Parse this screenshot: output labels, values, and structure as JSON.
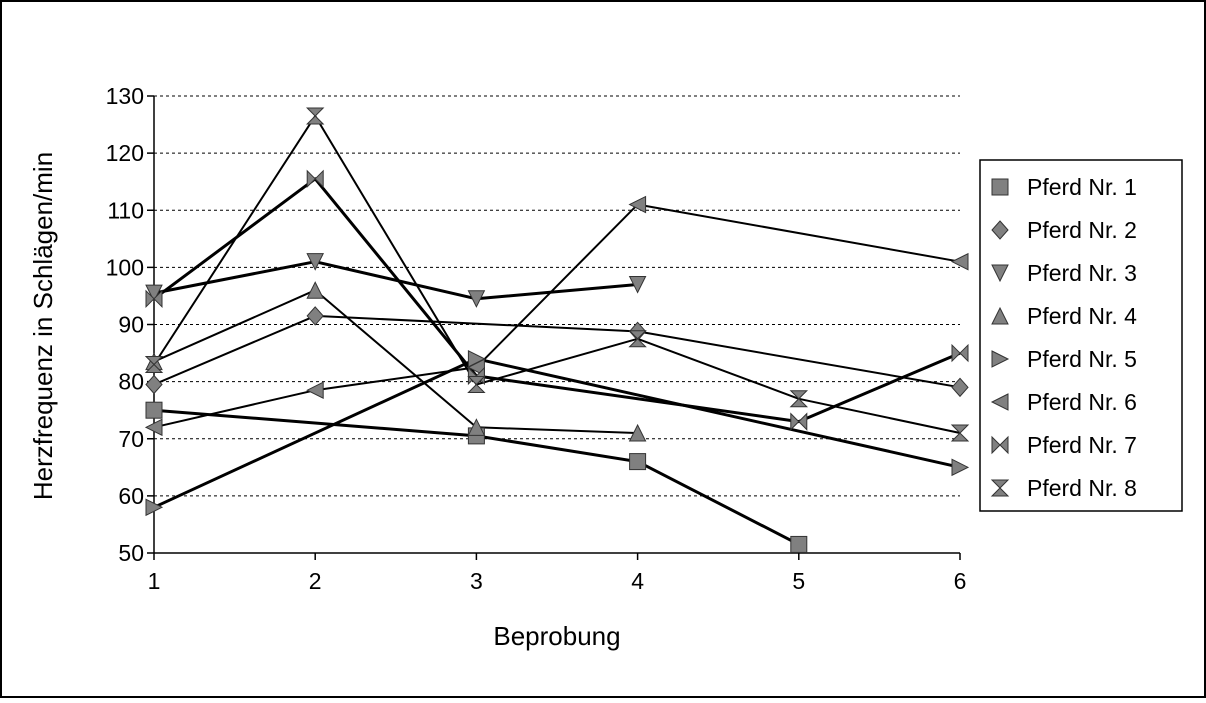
{
  "chart_data": {
    "type": "line",
    "title": "",
    "xlabel": "Beprobung",
    "ylabel": "Herzfrequenz in Schlägen/min",
    "x_ticks": [
      1,
      2,
      3,
      4,
      5,
      6
    ],
    "y_ticks": [
      50,
      60,
      70,
      80,
      90,
      100,
      110,
      120,
      130
    ],
    "xlim": [
      1,
      6
    ],
    "ylim": [
      50,
      130
    ],
    "grid": "horizontal dashed",
    "legend_position": "right",
    "series": [
      {
        "name": "Pferd Nr. 1",
        "marker": "square",
        "points": [
          [
            1,
            75
          ],
          [
            3,
            70.5
          ],
          [
            4,
            66
          ],
          [
            5,
            51.5
          ]
        ]
      },
      {
        "name": "Pferd Nr. 2",
        "marker": "diamond",
        "points": [
          [
            1,
            79.5
          ],
          [
            2,
            91.5
          ],
          [
            4,
            88.8
          ],
          [
            6,
            79
          ]
        ]
      },
      {
        "name": "Pferd Nr. 3",
        "marker": "triangle-down",
        "points": [
          [
            1,
            95.5
          ],
          [
            2,
            101
          ],
          [
            3,
            94.5
          ],
          [
            4,
            97
          ]
        ]
      },
      {
        "name": "Pferd Nr. 4",
        "marker": "triangle-up",
        "points": [
          [
            1,
            83.5
          ],
          [
            2,
            96
          ],
          [
            3,
            72
          ],
          [
            4,
            71
          ]
        ]
      },
      {
        "name": "Pferd Nr. 5",
        "marker": "triangle-right",
        "points": [
          [
            1,
            58
          ],
          [
            3,
            84
          ],
          [
            6,
            65
          ]
        ]
      },
      {
        "name": "Pferd Nr. 6",
        "marker": "triangle-left",
        "points": [
          [
            1,
            72
          ],
          [
            2,
            78.5
          ],
          [
            3,
            82.5
          ],
          [
            4,
            111
          ],
          [
            6,
            101
          ]
        ]
      },
      {
        "name": "Pferd Nr. 7",
        "marker": "bowtie",
        "points": [
          [
            1,
            94.5
          ],
          [
            2,
            115.5
          ],
          [
            3,
            81
          ],
          [
            5,
            73
          ],
          [
            6,
            85
          ]
        ]
      },
      {
        "name": "Pferd Nr. 8",
        "marker": "hourglass",
        "points": [
          [
            1,
            83
          ],
          [
            2,
            126.5
          ],
          [
            3,
            79.5
          ],
          [
            4,
            87.5
          ],
          [
            5,
            77
          ],
          [
            6,
            71
          ]
        ]
      }
    ]
  },
  "colors": {
    "marker_fill": "#808080",
    "marker_stroke": "#333333",
    "line": "#000000",
    "grid": "#000000",
    "frame": "#000000"
  }
}
